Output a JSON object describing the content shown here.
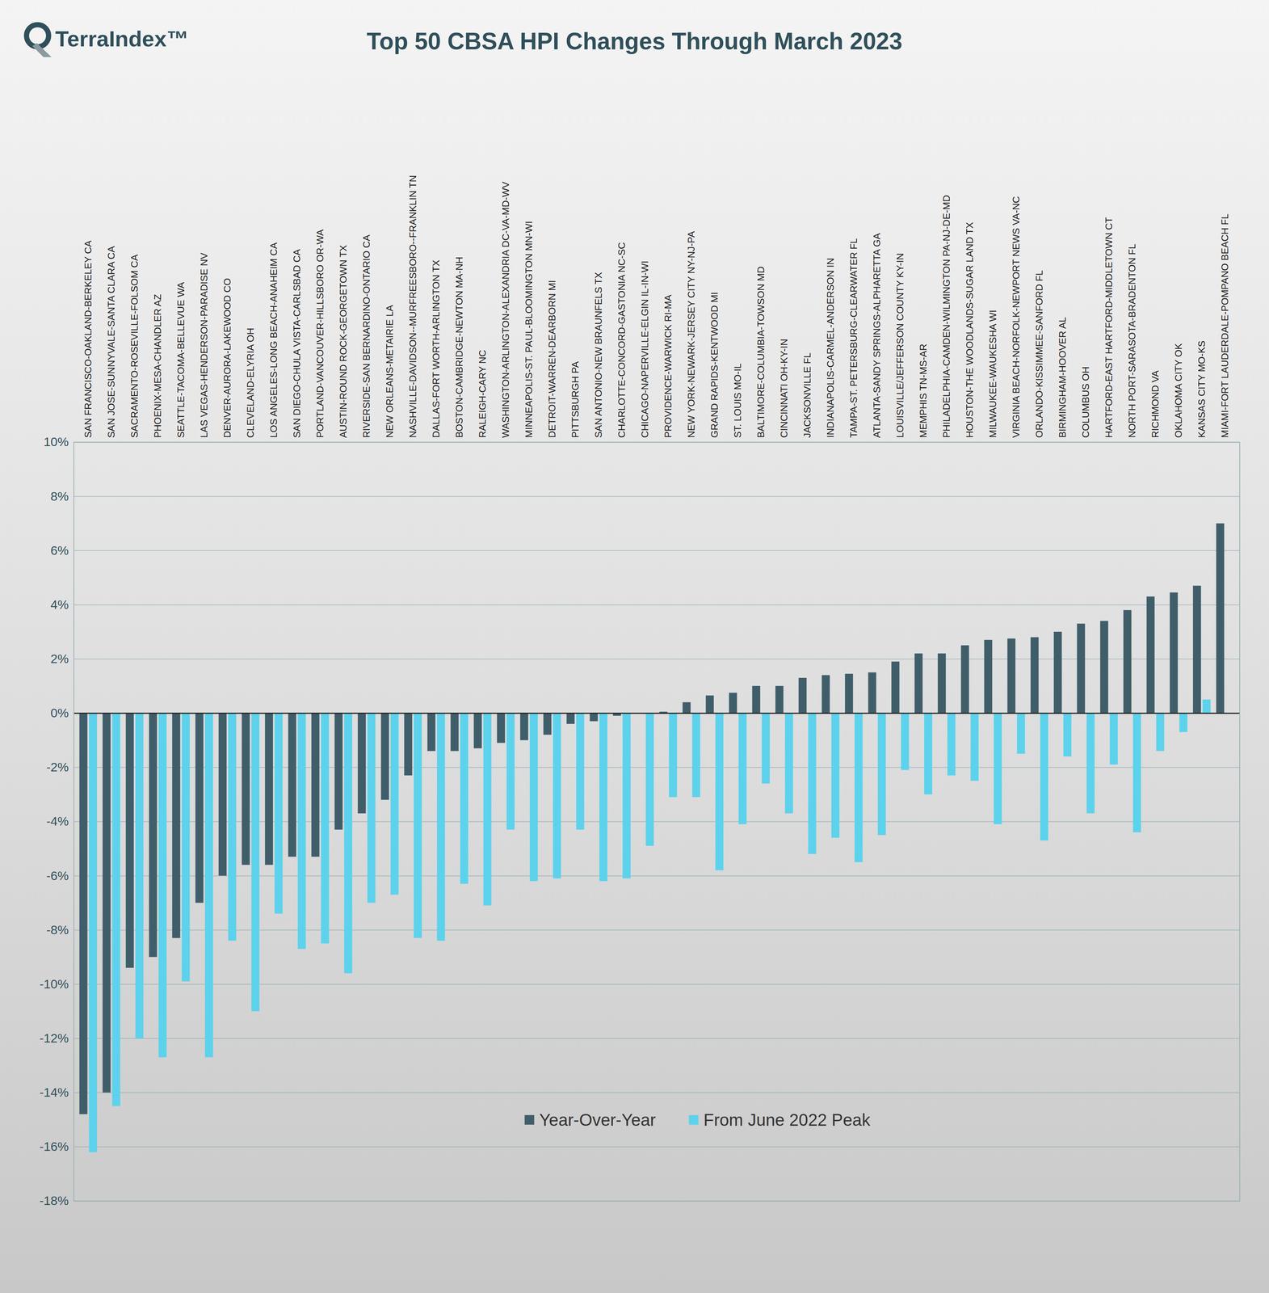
{
  "chart_data": {
    "type": "bar",
    "title": "Top 50 CBSA HPI Changes Through March 2023",
    "annotations": [
      "TerraIndex™"
    ],
    "categories": [
      "SAN FRANCISCO-OAKLAND-BERKELEY CA",
      "SAN JOSE-SUNNYVALE-SANTA CLARA CA",
      "SACRAMENTO-ROSEVILLE-FOLSOM CA",
      "PHOENIX-MESA-CHANDLER AZ",
      "SEATTLE-TACOMA-BELLEVUE WA",
      "LAS VEGAS-HENDERSON-PARADISE NV",
      "DENVER-AURORA-LAKEWOOD CO",
      "CLEVELAND-ELYRIA OH",
      "LOS ANGELES-LONG BEACH-ANAHEIM CA",
      "SAN DIEGO-CHULA VISTA-CARLSBAD CA",
      "PORTLAND-VANCOUVER-HILLSBORO OR-WA",
      "AUSTIN-ROUND ROCK-GEORGETOWN TX",
      "RIVERSIDE-SAN BERNARDINO-ONTARIO CA",
      "NEW ORLEANS-METAIRIE LA",
      "NASHVILLE-DAVIDSON--MURFREESBORO--FRANKLIN TN",
      "DALLAS-FORT WORTH-ARLINGTON TX",
      "BOSTON-CAMBRIDGE-NEWTON MA-NH",
      "RALEIGH-CARY NC",
      "WASHINGTON-ARLINGTON-ALEXANDRIA DC-VA-MD-WV",
      "MINNEAPOLIS-ST. PAUL-BLOOMINGTON MN-WI",
      "DETROIT-WARREN-DEARBORN MI",
      "PITTSBURGH PA",
      "SAN ANTONIO-NEW BRAUNFELS TX",
      "CHARLOTTE-CONCORD-GASTONIA NC-SC",
      "CHICAGO-NAPERVILLE-ELGIN IL-IN-WI",
      "PROVIDENCE-WARWICK RI-MA",
      "NEW YORK-NEWARK-JERSEY CITY NY-NJ-PA",
      "GRAND RAPIDS-KENTWOOD MI",
      "ST. LOUIS MO-IL",
      "BALTIMORE-COLUMBIA-TOWSON MD",
      "CINCINNATI OH-KY-IN",
      "JACKSONVILLE FL",
      "INDIANAPOLIS-CARMEL-ANDERSON IN",
      "TAMPA-ST. PETERSBURG-CLEARWATER FL",
      "ATLANTA-SANDY SPRINGS-ALPHARETTA GA",
      "LOUISVILLE/JEFFERSON COUNTY KY-IN",
      "MEMPHIS TN-MS-AR",
      "PHILADELPHIA-CAMDEN-WILMINGTON PA-NJ-DE-MD",
      "HOUSTON-THE WOODLANDS-SUGAR LAND TX",
      "MILWAUKEE-WAUKESHA WI",
      "VIRGINIA BEACH-NORFOLK-NEWPORT NEWS VA-NC",
      "ORLANDO-KISSIMMEE-SANFORD FL",
      "BIRMINGHAM-HOOVER AL",
      "COLUMBUS OH",
      "HARTFORD-EAST HARTFORD-MIDDLETOWN CT",
      "NORTH PORT-SARASOTA-BRADENTON FL",
      "RICHMOND VA",
      "OKLAHOMA CITY OK",
      "KANSAS CITY MO-KS",
      "MIAMI-FORT LAUDERDALE-POMPANO BEACH FL"
    ],
    "series": [
      {
        "name": "Year-Over-Year",
        "color": "#3f5e6a",
        "values": [
          -14.8,
          -14.0,
          -9.4,
          -9.0,
          -8.3,
          -7.0,
          -6.0,
          -5.6,
          -5.6,
          -5.3,
          -5.3,
          -4.3,
          -3.7,
          -3.2,
          -2.3,
          -1.4,
          -1.4,
          -1.3,
          -1.1,
          -1.0,
          -0.8,
          -0.4,
          -0.3,
          -0.1,
          0.0,
          0.05,
          0.4,
          0.65,
          0.75,
          1.0,
          1.0,
          1.3,
          1.4,
          1.45,
          1.5,
          1.9,
          2.2,
          2.2,
          2.5,
          2.7,
          2.75,
          2.8,
          3.0,
          3.3,
          3.4,
          3.8,
          4.3,
          4.45,
          4.7,
          7.0
        ]
      },
      {
        "name": "From June 2022 Peak",
        "color": "#5dd2ec",
        "values": [
          -16.2,
          -14.5,
          -12.0,
          -12.7,
          -9.9,
          -12.7,
          -8.4,
          -11.0,
          -7.4,
          -8.7,
          -8.5,
          -9.6,
          -7.0,
          -6.7,
          -8.3,
          -8.4,
          -6.3,
          -7.1,
          -4.3,
          -6.2,
          -6.1,
          -4.3,
          -6.2,
          -6.1,
          -4.9,
          -3.1,
          -3.1,
          -5.8,
          -4.1,
          -2.6,
          -3.7,
          -5.2,
          -4.6,
          -5.5,
          -4.5,
          -2.1,
          -3.0,
          -2.3,
          -2.5,
          -4.1,
          -1.5,
          -4.7,
          -1.6,
          -3.7,
          -1.9,
          -4.4,
          -1.4,
          -0.7,
          0.5,
          0.0
        ]
      }
    ],
    "ylim": [
      -18,
      10
    ],
    "yticks": [
      {
        "value": -18,
        "label": "-18%"
      },
      {
        "value": -16,
        "label": "-16%"
      },
      {
        "value": -14,
        "label": "-14%"
      },
      {
        "value": -12,
        "label": "-12%"
      },
      {
        "value": -10,
        "label": "-10%"
      },
      {
        "value": -8,
        "label": "-8%"
      },
      {
        "value": -6,
        "label": "-6%"
      },
      {
        "value": -4,
        "label": "-4%"
      },
      {
        "value": -2,
        "label": "-2%"
      },
      {
        "value": 0,
        "label": "0%"
      },
      {
        "value": 2,
        "label": "2%"
      },
      {
        "value": 4,
        "label": "4%"
      },
      {
        "value": 6,
        "label": "6%"
      },
      {
        "value": 8,
        "label": "8%"
      },
      {
        "value": 10,
        "label": "10%"
      }
    ],
    "grid": true,
    "legend": "bottom"
  }
}
